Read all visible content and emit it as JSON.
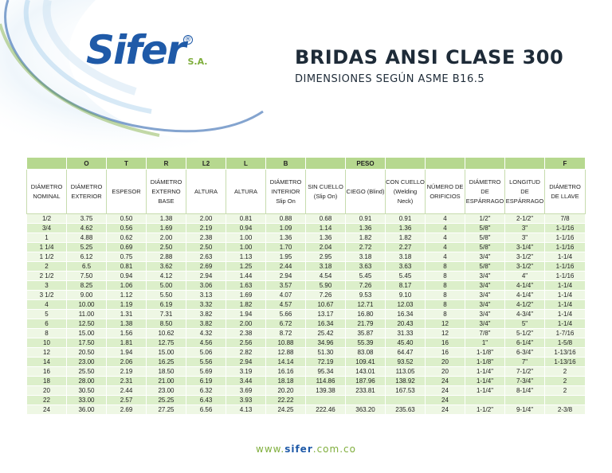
{
  "brand": {
    "logo": "Sifer",
    "suffix": "S.A.",
    "reg": "®",
    "url_pre": "www.",
    "url_name": "sifer",
    "url_post": ".com.co"
  },
  "title": "BRIDAS ANSI CLASE 300",
  "subtitle": "DIMENSIONES SEGÚN ASME B16.5",
  "table": {
    "letters": [
      "",
      "O",
      "T",
      "R",
      "L2",
      "L",
      "B",
      "",
      "PESO",
      "",
      "",
      "",
      "",
      "F"
    ],
    "headers": [
      "DIÁMETRO NOMINAL",
      "DIÁMETRO EXTERIOR",
      "ESPESOR",
      "DIÁMETRO EXTERNO BASE",
      "ALTURA",
      "ALTURA",
      "DIÁMETRO INTERIOR Slip On",
      "SIN CUELLO (Slip On)",
      "CIEGO (Blind)",
      "CON CUELLO (Welding Neck)",
      "NÚMERO DE ORIFICIOS",
      "DIÁMETRO DE ESPÁRRAGO",
      "LONGITUD DE ESPÁRRAGO",
      "DIÁMETRO DE LLAVE"
    ],
    "rows": [
      [
        "1/2",
        "3.75",
        "0.50",
        "1.38",
        "2.00",
        "0.81",
        "0.88",
        "0.68",
        "0.91",
        "0.91",
        "4",
        "1/2\"",
        "2-1/2\"",
        "7/8"
      ],
      [
        "3/4",
        "4.62",
        "0.56",
        "1.69",
        "2.19",
        "0.94",
        "1.09",
        "1.14",
        "1.36",
        "1.36",
        "4",
        "5/8\"",
        "3\"",
        "1-1/16"
      ],
      [
        "1",
        "4.88",
        "0.62",
        "2.00",
        "2.38",
        "1.00",
        "1.36",
        "1.36",
        "1.82",
        "1.82",
        "4",
        "5/8\"",
        "3\"",
        "1-1/16"
      ],
      [
        "1 1/4",
        "5.25",
        "0.69",
        "2.50",
        "2.50",
        "1.00",
        "1.70",
        "2.04",
        "2.72",
        "2.27",
        "4",
        "5/8\"",
        "3-1/4\"",
        "1-1/16"
      ],
      [
        "1 1/2",
        "6.12",
        "0.75",
        "2.88",
        "2.63",
        "1.13",
        "1.95",
        "2.95",
        "3.18",
        "3.18",
        "4",
        "3/4\"",
        "3-1/2\"",
        "1-1/4"
      ],
      [
        "2",
        "6.5",
        "0.81",
        "3.62",
        "2.69",
        "1.25",
        "2.44",
        "3.18",
        "3.63",
        "3.63",
        "8",
        "5/8\"",
        "3-1/2\"",
        "1-1/16"
      ],
      [
        "2 1/2",
        "7.50",
        "0.94",
        "4.12",
        "2.94",
        "1.44",
        "2.94",
        "4.54",
        "5.45",
        "5.45",
        "8",
        "3/4\"",
        "4\"",
        "1-1/16"
      ],
      [
        "3",
        "8.25",
        "1.06",
        "5.00",
        "3.06",
        "1.63",
        "3.57",
        "5.90",
        "7.26",
        "8.17",
        "8",
        "3/4\"",
        "4-1/4\"",
        "1-1/4"
      ],
      [
        "3 1/2",
        "9.00",
        "1.12",
        "5.50",
        "3.13",
        "1.69",
        "4.07",
        "7.26",
        "9.53",
        "9.10",
        "8",
        "3/4\"",
        "4-1/4\"",
        "1-1/4"
      ],
      [
        "4",
        "10.00",
        "1.19",
        "6.19",
        "3.32",
        "1.82",
        "4.57",
        "10.67",
        "12.71",
        "12.03",
        "8",
        "3/4\"",
        "4-1/2\"",
        "1-1/4"
      ],
      [
        "5",
        "11.00",
        "1.31",
        "7.31",
        "3.82",
        "1.94",
        "5.66",
        "13.17",
        "16.80",
        "16.34",
        "8",
        "3/4\"",
        "4-3/4\"",
        "1-1/4"
      ],
      [
        "6",
        "12.50",
        "1.38",
        "8.50",
        "3.82",
        "2.00",
        "6.72",
        "16.34",
        "21.79",
        "20.43",
        "12",
        "3/4\"",
        "5\"",
        "1-1/4"
      ],
      [
        "8",
        "15.00",
        "1.56",
        "10.62",
        "4.32",
        "2.38",
        "8.72",
        "25.42",
        "35.87",
        "31.33",
        "12",
        "7/8\"",
        "5-1/2\"",
        "1-7/16"
      ],
      [
        "10",
        "17.50",
        "1.81",
        "12.75",
        "4.56",
        "2.56",
        "10.88",
        "34.96",
        "55.39",
        "45.40",
        "16",
        "1\"",
        "6-1/4\"",
        "1-5/8"
      ],
      [
        "12",
        "20.50",
        "1.94",
        "15.00",
        "5.06",
        "2.82",
        "12.88",
        "51.30",
        "83.08",
        "64.47",
        "16",
        "1-1/8\"",
        "6-3/4\"",
        "1-13/16"
      ],
      [
        "14",
        "23.00",
        "2.06",
        "16.25",
        "5.56",
        "2.94",
        "14.14",
        "72.19",
        "109.41",
        "93.52",
        "20",
        "1-1/8\"",
        "7\"",
        "1-13/16"
      ],
      [
        "16",
        "25.50",
        "2.19",
        "18.50",
        "5.69",
        "3.19",
        "16.16",
        "95.34",
        "143.01",
        "113.05",
        "20",
        "1-1/4\"",
        "7-1/2\"",
        "2"
      ],
      [
        "18",
        "28.00",
        "2.31",
        "21.00",
        "6.19",
        "3.44",
        "18.18",
        "114.86",
        "187.96",
        "138.92",
        "24",
        "1-1/4\"",
        "7-3/4\"",
        "2"
      ],
      [
        "20",
        "30.50",
        "2.44",
        "23.00",
        "6.32",
        "3.69",
        "20.20",
        "139.38",
        "233.81",
        "167.53",
        "24",
        "1-1/4\"",
        "8-1/4\"",
        "2"
      ],
      [
        "22",
        "33.00",
        "2.57",
        "25.25",
        "6.43",
        "3.93",
        "22.22",
        "",
        "",
        "",
        "24",
        "",
        "",
        ""
      ],
      [
        "24",
        "36.00",
        "2.69",
        "27.25",
        "6.56",
        "4.13",
        "24.25",
        "222.46",
        "363.20",
        "235.63",
        "24",
        "1-1/2\"",
        "9-1/4\"",
        "2-3/8"
      ]
    ]
  }
}
